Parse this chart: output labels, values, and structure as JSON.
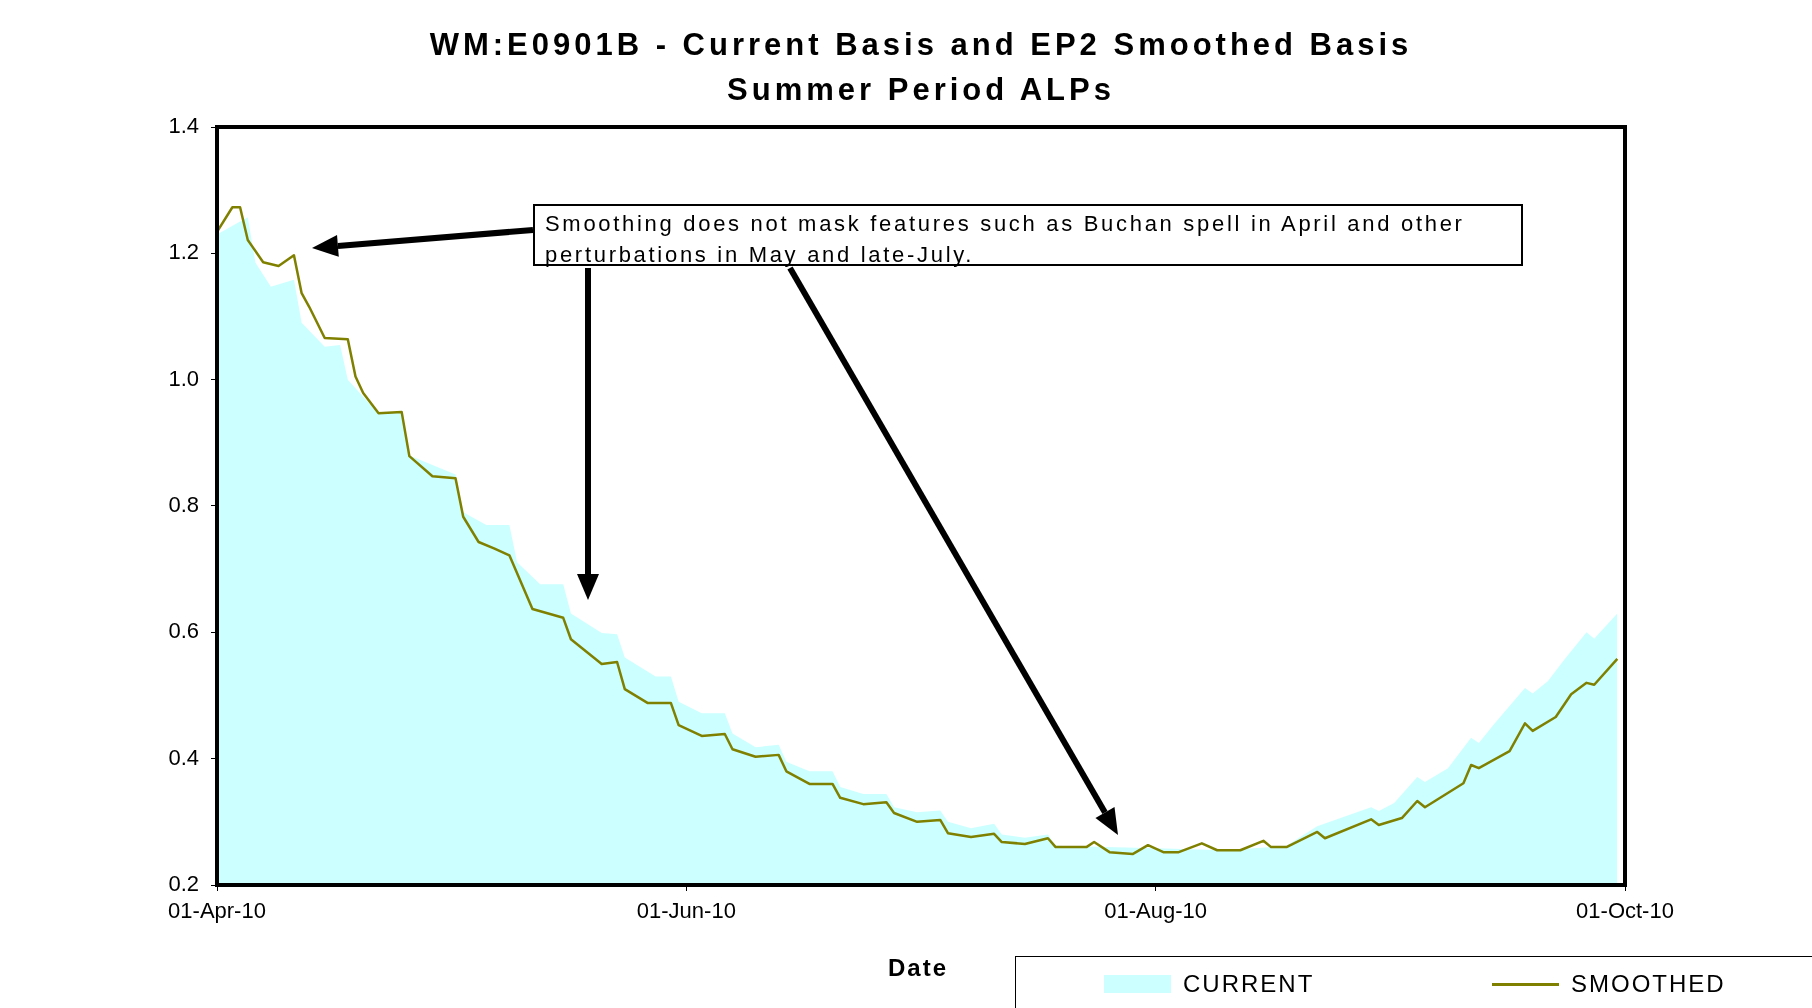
{
  "chart_data": {
    "type": "area",
    "title": "WM:E0901B - Current Basis and EP2 Smoothed Basis\nSummer Period ALPs",
    "xlabel": "Date",
    "annotations": [
      "Smoothing does not mask features such as Buchan spell in April  and other perturbations in May and late-July."
    ],
    "legend": "bottom right",
    "grid": false,
    "xlim": [
      "2010-04-01",
      "2010-10-01"
    ],
    "xticks": [
      {
        "value": "2010-04-01",
        "label": "01-Apr-10"
      },
      {
        "value": "2010-06-01",
        "label": "01-Jun-10"
      },
      {
        "value": "2010-08-01",
        "label": "01-Aug-10"
      },
      {
        "value": "2010-10-01",
        "label": "01-Oct-10"
      }
    ],
    "ylim": [
      0.2,
      1.4
    ],
    "yticks": [
      {
        "value": 0.2,
        "label": "0.2"
      },
      {
        "value": 0.4,
        "label": "0.4"
      },
      {
        "value": 0.6,
        "label": "0.6"
      },
      {
        "value": 0.8,
        "label": "0.8"
      },
      {
        "value": 1.0,
        "label": "1.0"
      },
      {
        "value": 1.2,
        "label": "1.2"
      },
      {
        "value": 1.4,
        "label": "1.4"
      }
    ],
    "series": [
      {
        "name": "CURRENT",
        "color": "#ccffff",
        "x": [
          "2010-04-01",
          "2010-04-05",
          "2010-04-06",
          "2010-04-08",
          "2010-04-11",
          "2010-04-12",
          "2010-04-15",
          "2010-04-17",
          "2010-04-18",
          "2010-04-22",
          "2010-04-25",
          "2010-04-26",
          "2010-05-02",
          "2010-05-03",
          "2010-05-06",
          "2010-05-09",
          "2010-05-10",
          "2010-05-13",
          "2010-05-16",
          "2010-05-17",
          "2010-05-21",
          "2010-05-23",
          "2010-05-24",
          "2010-05-28",
          "2010-05-30",
          "2010-05-31",
          "2010-06-03",
          "2010-06-06",
          "2010-06-07",
          "2010-06-10",
          "2010-06-13",
          "2010-06-14",
          "2010-06-17",
          "2010-06-20",
          "2010-06-21",
          "2010-06-24",
          "2010-06-27",
          "2010-06-28",
          "2010-07-01",
          "2010-07-04",
          "2010-07-05",
          "2010-07-08",
          "2010-07-11",
          "2010-07-12",
          "2010-07-15",
          "2010-07-18",
          "2010-07-19",
          "2010-08-01",
          "2010-08-10",
          "2010-08-18",
          "2010-08-22",
          "2010-08-29",
          "2010-08-30",
          "2010-09-01",
          "2010-09-04",
          "2010-09-05",
          "2010-09-08",
          "2010-09-11",
          "2010-09-12",
          "2010-09-14",
          "2010-09-18",
          "2010-09-19",
          "2010-09-21",
          "2010-09-23",
          "2010-09-26",
          "2010-09-27",
          "2010-09-30"
        ],
        "values": [
          1.23,
          1.257,
          1.185,
          1.147,
          1.158,
          1.09,
          1.052,
          1.055,
          1.0,
          0.946,
          0.95,
          0.88,
          0.85,
          0.79,
          0.77,
          0.77,
          0.711,
          0.676,
          0.676,
          0.63,
          0.599,
          0.597,
          0.56,
          0.53,
          0.53,
          0.49,
          0.472,
          0.472,
          0.44,
          0.418,
          0.422,
          0.395,
          0.38,
          0.38,
          0.355,
          0.344,
          0.344,
          0.323,
          0.315,
          0.318,
          0.3,
          0.29,
          0.297,
          0.28,
          0.275,
          0.28,
          0.262,
          0.258,
          0.255,
          0.262,
          0.293,
          0.323,
          0.317,
          0.33,
          0.371,
          0.363,
          0.385,
          0.433,
          0.425,
          0.455,
          0.512,
          0.503,
          0.523,
          0.555,
          0.6,
          0.59,
          0.63
        ]
      },
      {
        "name": "SMOOTHED",
        "type": "line",
        "color": "#808000",
        "x": [
          "2010-04-01",
          "2010-04-03",
          "2010-04-04",
          "2010-04-05",
          "2010-04-07",
          "2010-04-09",
          "2010-04-11",
          "2010-04-12",
          "2010-04-13",
          "2010-04-15",
          "2010-04-18",
          "2010-04-19",
          "2010-04-20",
          "2010-04-22",
          "2010-04-25",
          "2010-04-26",
          "2010-04-29",
          "2010-05-02",
          "2010-05-03",
          "2010-05-05",
          "2010-05-07",
          "2010-05-09",
          "2010-05-12",
          "2010-05-16",
          "2010-05-17",
          "2010-05-21",
          "2010-05-23",
          "2010-05-24",
          "2010-05-27",
          "2010-05-30",
          "2010-05-31",
          "2010-06-03",
          "2010-06-06",
          "2010-06-07",
          "2010-06-10",
          "2010-06-13",
          "2010-06-14",
          "2010-06-17",
          "2010-06-20",
          "2010-06-21",
          "2010-06-24",
          "2010-06-27",
          "2010-06-28",
          "2010-07-01",
          "2010-07-04",
          "2010-07-05",
          "2010-07-08",
          "2010-07-11",
          "2010-07-12",
          "2010-07-15",
          "2010-07-18",
          "2010-07-19",
          "2010-07-23",
          "2010-07-24",
          "2010-07-26",
          "2010-07-29",
          "2010-07-31",
          "2010-08-02",
          "2010-08-04",
          "2010-08-07",
          "2010-08-09",
          "2010-08-12",
          "2010-08-15",
          "2010-08-16",
          "2010-08-18",
          "2010-08-22",
          "2010-08-23",
          "2010-08-29",
          "2010-08-30",
          "2010-09-02",
          "2010-09-04",
          "2010-09-05",
          "2010-09-10",
          "2010-09-11",
          "2010-09-12",
          "2010-09-16",
          "2010-09-18",
          "2010-09-19",
          "2010-09-22",
          "2010-09-24",
          "2010-09-26",
          "2010-09-27",
          "2010-09-30"
        ],
        "values": [
          1.234,
          1.273,
          1.273,
          1.221,
          1.186,
          1.18,
          1.197,
          1.137,
          1.115,
          1.066,
          1.064,
          1.005,
          0.979,
          0.947,
          0.949,
          0.879,
          0.847,
          0.844,
          0.783,
          0.743,
          0.733,
          0.722,
          0.637,
          0.623,
          0.589,
          0.55,
          0.553,
          0.51,
          0.488,
          0.488,
          0.453,
          0.436,
          0.439,
          0.415,
          0.403,
          0.406,
          0.38,
          0.36,
          0.36,
          0.338,
          0.328,
          0.331,
          0.314,
          0.3,
          0.303,
          0.282,
          0.276,
          0.281,
          0.268,
          0.265,
          0.274,
          0.26,
          0.26,
          0.268,
          0.252,
          0.249,
          0.263,
          0.252,
          0.252,
          0.266,
          0.255,
          0.255,
          0.27,
          0.26,
          0.26,
          0.284,
          0.274,
          0.304,
          0.295,
          0.306,
          0.333,
          0.323,
          0.361,
          0.39,
          0.385,
          0.412,
          0.456,
          0.444,
          0.466,
          0.502,
          0.52,
          0.517,
          0.558
        ]
      }
    ]
  }
}
